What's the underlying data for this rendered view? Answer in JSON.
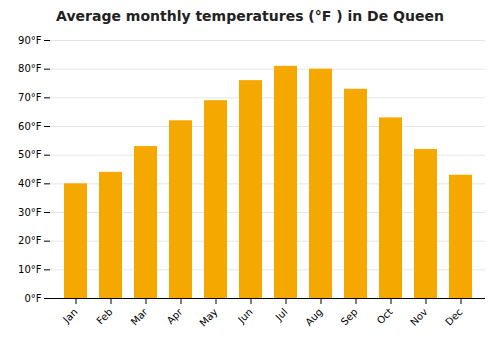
{
  "chart_data": {
    "type": "bar",
    "title": "Average monthly temperatures (°F ) in De Queen",
    "categories": [
      "Jan",
      "Feb",
      "Mar",
      "Apr",
      "May",
      "Jun",
      "Jul",
      "Aug",
      "Sep",
      "Oct",
      "Nov",
      "Dec"
    ],
    "values": [
      40,
      44,
      53,
      62,
      69,
      76,
      81,
      80,
      73,
      63,
      52,
      43
    ],
    "color": "#F5A800",
    "ylim": [
      0,
      90
    ],
    "yticks": [
      {
        "value": 0,
        "label": "0°F"
      },
      {
        "value": 10,
        "label": "10°F"
      },
      {
        "value": 20,
        "label": "20°F"
      },
      {
        "value": 30,
        "label": "30°F"
      },
      {
        "value": 40,
        "label": "40°F"
      },
      {
        "value": 50,
        "label": "50°F"
      },
      {
        "value": 60,
        "label": "60°F"
      },
      {
        "value": 70,
        "label": "70°F"
      },
      {
        "value": 80,
        "label": "80°F"
      },
      {
        "value": 90,
        "label": "90°F"
      }
    ],
    "grid": true
  }
}
